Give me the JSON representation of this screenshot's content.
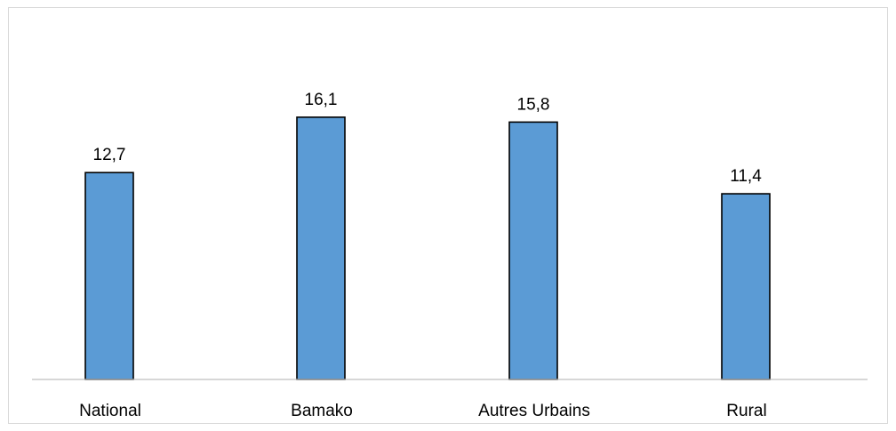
{
  "chart_data": {
    "type": "bar",
    "categories": [
      "National",
      "Bamako",
      "Autres Urbains",
      "Rural"
    ],
    "values": [
      12.7,
      16.1,
      15.8,
      11.4
    ],
    "data_labels": [
      "12,7",
      "16,1",
      "15,8",
      "11,4"
    ],
    "title": "",
    "xlabel": "",
    "ylabel": "",
    "ylim": [
      0,
      18.5
    ],
    "grid": false,
    "legend": "none",
    "colors": {
      "bar_fill": "#5b9bd5",
      "bar_stroke": "#000000",
      "axis": "#bfbfbf"
    }
  }
}
